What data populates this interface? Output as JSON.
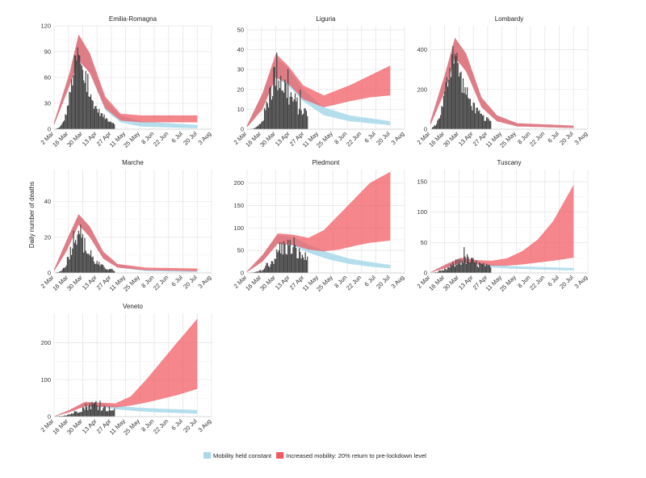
{
  "chart_data": {
    "type": "bar",
    "ylabel": "Daily number of deaths",
    "x_tick_labels": [
      "2 Mar",
      "16 Mar",
      "30 Mar",
      "13 Apr",
      "27 Apr",
      "11 May",
      "25 May",
      "8 Jun",
      "22 Jun",
      "6 Jul",
      "20 Jul",
      "3 Aug"
    ],
    "legend": [
      {
        "label": "Mobility held constant",
        "color": "#a8d8ea"
      },
      {
        "label": "Increased mobility: 20% return to pre-lockdown level",
        "color": "#f0585f"
      }
    ],
    "colors": {
      "bars": "#444444",
      "constant_band": "#a8d8ea",
      "increased_band": "#f0585f"
    },
    "panels": [
      {
        "title": "Emilia-Romagna",
        "ylim": [
          0,
          120
        ],
        "yticks": [
          0,
          30,
          60,
          90,
          120
        ],
        "bars": {
          "peak_day": 24,
          "peak": 85,
          "rise": 7,
          "decay": 14,
          "noise": 0.2
        },
        "constant": {
          "points": [
            [
              0,
              5,
              8
            ],
            [
              15,
              50,
              65
            ],
            [
              24,
              80,
              110
            ],
            [
              35,
              65,
              88
            ],
            [
              50,
              22,
              35
            ],
            [
              65,
              8,
              16
            ],
            [
              85,
              3,
              9
            ],
            [
              140,
              1,
              5
            ]
          ]
        },
        "increased": {
          "points": [
            [
              0,
              5,
              8
            ],
            [
              15,
              50,
              65
            ],
            [
              24,
              80,
              110
            ],
            [
              35,
              65,
              88
            ],
            [
              50,
              24,
              38
            ],
            [
              65,
              10,
              18
            ],
            [
              85,
              8,
              16
            ],
            [
              140,
              8,
              16
            ]
          ]
        }
      },
      {
        "title": "Liguria",
        "ylim": [
          0,
          52
        ],
        "yticks": [
          0,
          10,
          20,
          30,
          40,
          50
        ],
        "bars": {
          "peak_day": 30,
          "peak": 29,
          "rise": 8,
          "decay": 22,
          "noise": 0.4
        },
        "constant": {
          "points": [
            [
              0,
              1,
              2
            ],
            [
              15,
              10,
              18
            ],
            [
              28,
              26,
              36
            ],
            [
              40,
              22,
              31
            ],
            [
              55,
              14,
              20
            ],
            [
              75,
              7,
              11
            ],
            [
              100,
              4,
              7
            ],
            [
              140,
              2,
              4
            ]
          ]
        },
        "increased": {
          "points": [
            [
              0,
              1,
              2
            ],
            [
              15,
              10,
              18
            ],
            [
              28,
              26,
              38
            ],
            [
              40,
              23,
              32
            ],
            [
              55,
              15,
              22
            ],
            [
              75,
              11,
              17
            ],
            [
              100,
              14,
              22
            ],
            [
              120,
              16,
              27
            ],
            [
              140,
              17,
              32
            ]
          ]
        }
      },
      {
        "title": "Lombardy",
        "ylim": [
          0,
          520
        ],
        "yticks": [
          0,
          200,
          400
        ],
        "bars": {
          "peak_day": 24,
          "peak": 380,
          "rise": 8,
          "decay": 15,
          "noise": 0.25
        },
        "constant": {
          "points": [
            [
              0,
              20,
              40
            ],
            [
              15,
              200,
              290
            ],
            [
              24,
              360,
              460
            ],
            [
              35,
              290,
              380
            ],
            [
              50,
              110,
              160
            ],
            [
              65,
              40,
              70
            ],
            [
              85,
              14,
              30
            ],
            [
              140,
              6,
              18
            ]
          ]
        },
        "increased": {
          "points": [
            [
              0,
              20,
              40
            ],
            [
              15,
              200,
              290
            ],
            [
              24,
              360,
              460
            ],
            [
              35,
              290,
              380
            ],
            [
              50,
              110,
              160
            ],
            [
              65,
              40,
              70
            ],
            [
              85,
              14,
              30
            ],
            [
              140,
              6,
              18
            ]
          ]
        }
      },
      {
        "title": "Marche",
        "ylim": [
          0,
          58
        ],
        "yticks": [
          0,
          20,
          40
        ],
        "bars": {
          "peak_day": 24,
          "peak": 25,
          "rise": 7,
          "decay": 12,
          "noise": 0.35
        },
        "constant": {
          "points": [
            [
              0,
              1,
              2
            ],
            [
              12,
              12,
              18
            ],
            [
              24,
              27,
              33
            ],
            [
              35,
              20,
              26
            ],
            [
              48,
              8,
              12
            ],
            [
              62,
              3,
              5
            ],
            [
              90,
              1,
              2
            ],
            [
              140,
              0.5,
              1.5
            ]
          ]
        },
        "increased": {
          "points": [
            [
              0,
              1,
              2
            ],
            [
              12,
              12,
              18
            ],
            [
              24,
              27,
              33
            ],
            [
              35,
              20,
              26
            ],
            [
              48,
              8,
              12
            ],
            [
              62,
              3,
              5
            ],
            [
              90,
              1.5,
              3
            ],
            [
              140,
              1,
              2.5
            ]
          ]
        }
      },
      {
        "title": "Piedmont",
        "ylim": [
          0,
          230
        ],
        "yticks": [
          0,
          50,
          100,
          150,
          200
        ],
        "bars": {
          "peak_day": 40,
          "peak": 60,
          "rise": 12,
          "decay": 30,
          "noise": 0.4
        },
        "constant": {
          "points": [
            [
              0,
              2,
              4
            ],
            [
              15,
              25,
              40
            ],
            [
              30,
              65,
              85
            ],
            [
              45,
              60,
              80
            ],
            [
              60,
              45,
              62
            ],
            [
              80,
              30,
              45
            ],
            [
              100,
              20,
              32
            ],
            [
              120,
              14,
              24
            ],
            [
              140,
              10,
              18
            ]
          ]
        },
        "increased": {
          "points": [
            [
              0,
              2,
              4
            ],
            [
              15,
              25,
              40
            ],
            [
              30,
              65,
              88
            ],
            [
              45,
              62,
              85
            ],
            [
              60,
              52,
              78
            ],
            [
              75,
              48,
              95
            ],
            [
              90,
              52,
              130
            ],
            [
              105,
              60,
              165
            ],
            [
              120,
              67,
              200
            ],
            [
              140,
              72,
              225
            ]
          ]
        }
      },
      {
        "title": "Tuscany",
        "ylim": [
          0,
          170
        ],
        "yticks": [
          0,
          50,
          100,
          150
        ],
        "bars": {
          "peak_day": 35,
          "peak": 23,
          "rise": 12,
          "decay": 25,
          "noise": 0.45
        },
        "constant": {
          "points": [
            [
              0,
              0.5,
              1
            ],
            [
              15,
              8,
              14
            ],
            [
              30,
              17,
              25
            ],
            [
              45,
              14,
              20
            ],
            [
              60,
              9,
              14
            ],
            [
              80,
              7,
              11
            ],
            [
              100,
              6,
              10
            ],
            [
              120,
              5,
              9
            ],
            [
              140,
              4,
              8
            ]
          ]
        },
        "increased": {
          "points": [
            [
              0,
              0.5,
              1
            ],
            [
              15,
              8,
              14
            ],
            [
              30,
              17,
              25
            ],
            [
              45,
              14,
              21
            ],
            [
              60,
              12,
              20
            ],
            [
              75,
              12,
              24
            ],
            [
              90,
              14,
              36
            ],
            [
              105,
              17,
              55
            ],
            [
              120,
              20,
              85
            ],
            [
              140,
              25,
              145
            ]
          ]
        }
      },
      {
        "title": "Veneto",
        "ylim": [
          0,
          280
        ],
        "yticks": [
          0,
          100,
          200
        ],
        "bars": {
          "peak_day": 40,
          "peak": 32,
          "rise": 14,
          "decay": 30,
          "noise": 0.4
        },
        "constant": {
          "points": [
            [
              0,
              0.5,
              1
            ],
            [
              15,
              12,
              18
            ],
            [
              30,
              28,
              38
            ],
            [
              45,
              26,
              36
            ],
            [
              60,
              20,
              30
            ],
            [
              80,
              15,
              25
            ],
            [
              100,
              12,
              22
            ],
            [
              120,
              10,
              20
            ],
            [
              140,
              8,
              18
            ]
          ]
        },
        "increased": {
          "points": [
            [
              0,
              0.5,
              1
            ],
            [
              15,
              12,
              18
            ],
            [
              30,
              28,
              40
            ],
            [
              45,
              27,
              38
            ],
            [
              60,
              25,
              36
            ],
            [
              75,
              30,
              55
            ],
            [
              90,
              38,
              100
            ],
            [
              105,
              48,
              150
            ],
            [
              120,
              58,
              200
            ],
            [
              140,
              75,
              265
            ]
          ]
        }
      }
    ]
  }
}
